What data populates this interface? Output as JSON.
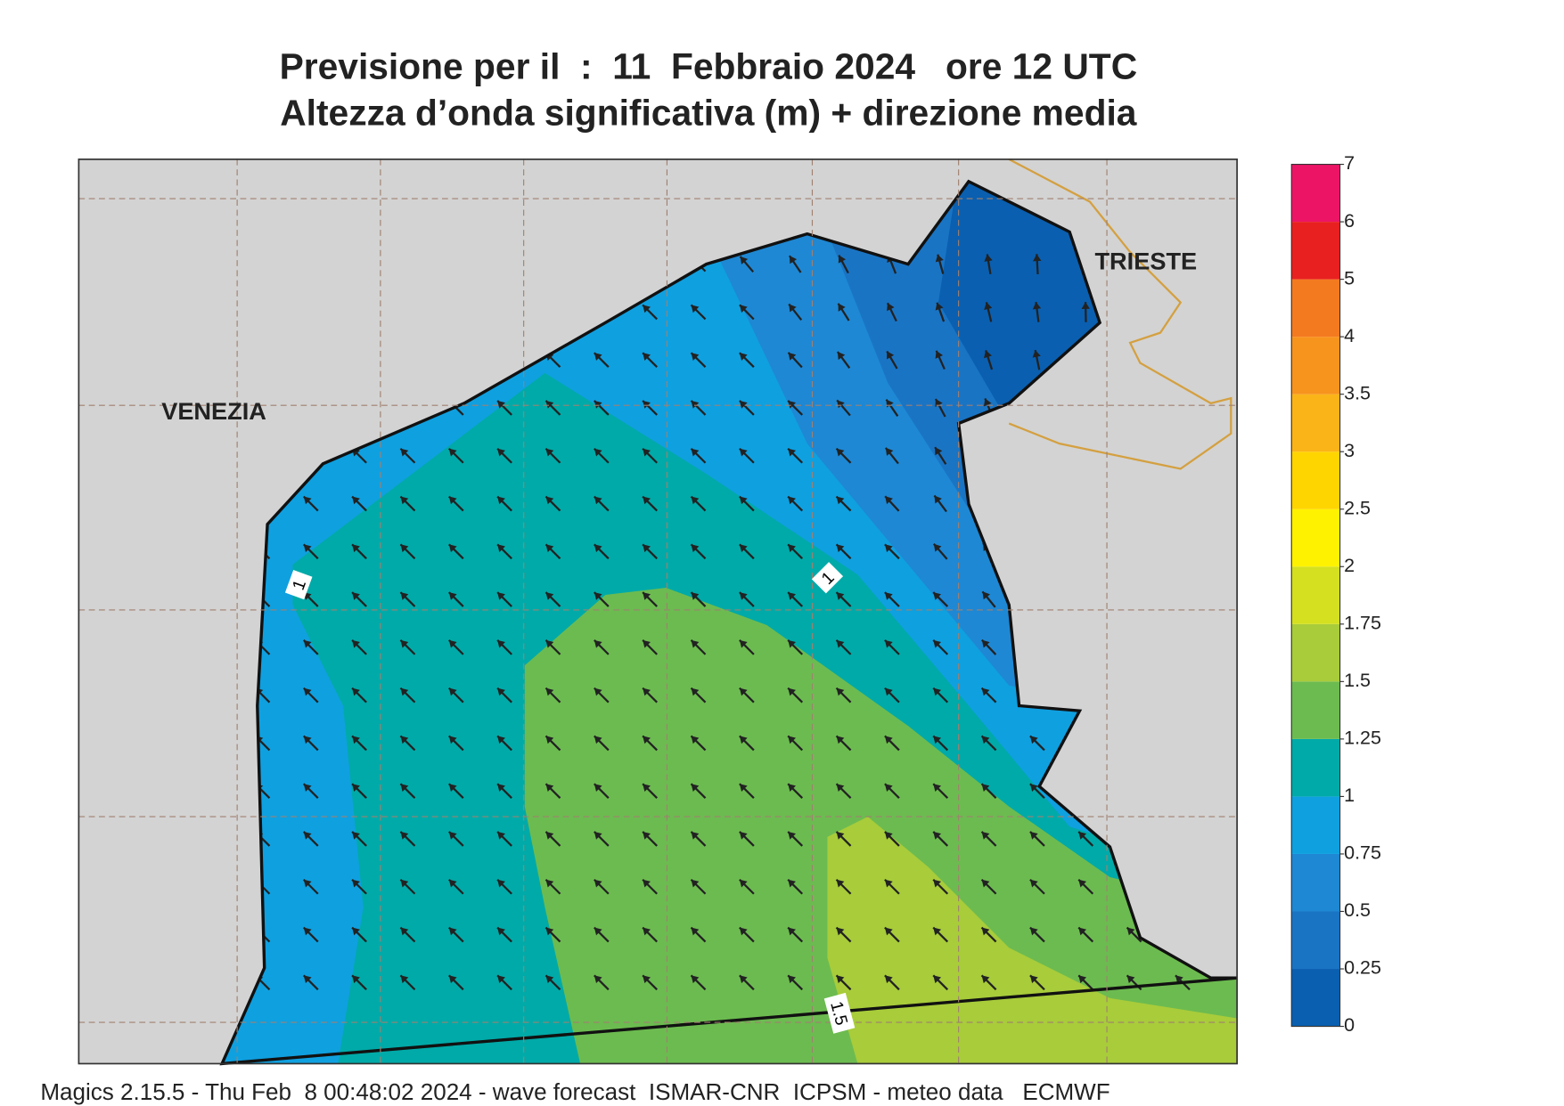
{
  "title": "Previsione per il  :  11  Febbraio 2024   ore 12 UTC",
  "subtitle": "Altezza d’onda significativa (m) + direzione media",
  "map": {
    "places": [
      "VENEZIA",
      "TRIESTE"
    ],
    "contour_labels": [
      "1",
      "1",
      "1.5"
    ]
  },
  "colorbar": {
    "levels": [
      0,
      0.25,
      0.5,
      0.75,
      1,
      1.25,
      1.5,
      1.75,
      2,
      2.5,
      3,
      3.5,
      4,
      5,
      6,
      7
    ],
    "colors": [
      "#0a5fb0",
      "#1a74c4",
      "#1e88d4",
      "#0fa0e0",
      "#00aaa8",
      "#6cbb50",
      "#a8cc3a",
      "#d4e020",
      "#fff200",
      "#ffd500",
      "#fbb418",
      "#f7941d",
      "#f47a20",
      "#e82020",
      "#ec1565"
    ]
  },
  "footer": "Magics 2.15.5 - Thu Feb  8 00:48:02 2024 - wave forecast  ISMAR-CNR  ICPSM - meteo data   ECMWF"
}
